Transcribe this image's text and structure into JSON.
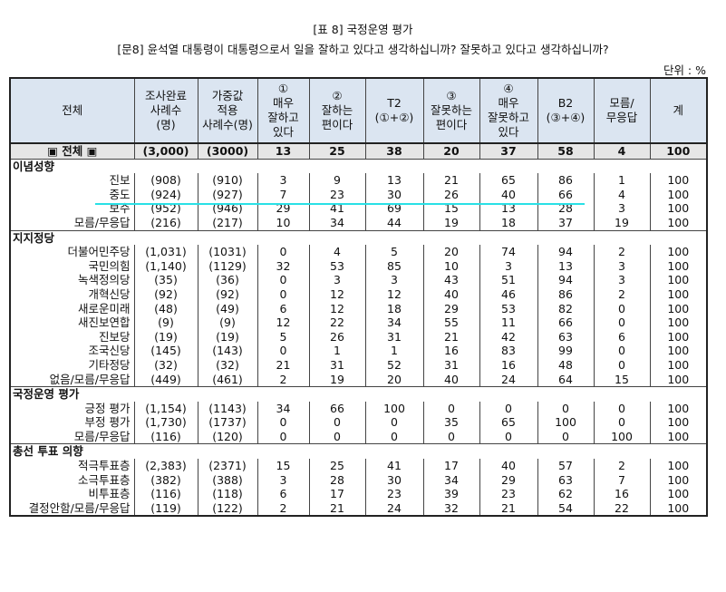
{
  "header": {
    "title": "[표 8] 국정운영 평가",
    "question": "[문8] 윤석열 대통령이 대통령으로서 일을 잘하고 있다고 생각하십니까? 잘못하고 있다고 생각하십니까?",
    "unit": "단위 : %"
  },
  "table": {
    "columns": [
      "전체",
      "조사완료\n사례수\n(명)",
      "가중값\n적용\n사례수(명)",
      "①\n매우\n잘하고\n있다",
      "②\n잘하는\n편이다",
      "T2\n(①+②)",
      "③\n잘못하는\n편이다",
      "④\n매우\n잘못하고\n있다",
      "B2\n(③+④)",
      "모름/\n무응답",
      "계"
    ],
    "total": {
      "label": "▣ 전체 ▣",
      "values": [
        "(3,000)",
        "(3000)",
        "13",
        "25",
        "38",
        "20",
        "37",
        "58",
        "4",
        "100"
      ]
    },
    "groups": [
      {
        "title": "이념성향",
        "rows": [
          {
            "label": "진보",
            "values": [
              "(908)",
              "(910)",
              "3",
              "9",
              "13",
              "21",
              "65",
              "86",
              "1",
              "100"
            ]
          },
          {
            "label": "중도",
            "values": [
              "(924)",
              "(927)",
              "7",
              "23",
              "30",
              "26",
              "40",
              "66",
              "4",
              "100"
            ]
          },
          {
            "label": "보수",
            "values": [
              "(952)",
              "(946)",
              "29",
              "41",
              "69",
              "15",
              "13",
              "28",
              "3",
              "100"
            ]
          },
          {
            "label": "모름/무응답",
            "values": [
              "(216)",
              "(217)",
              "10",
              "34",
              "44",
              "19",
              "18",
              "37",
              "19",
              "100"
            ]
          }
        ]
      },
      {
        "title": "지지정당",
        "rows": [
          {
            "label": "더불어민주당",
            "values": [
              "(1,031)",
              "(1031)",
              "0",
              "4",
              "5",
              "20",
              "74",
              "94",
              "2",
              "100"
            ]
          },
          {
            "label": "국민의힘",
            "values": [
              "(1,140)",
              "(1129)",
              "32",
              "53",
              "85",
              "10",
              "3",
              "13",
              "3",
              "100"
            ]
          },
          {
            "label": "녹색정의당",
            "values": [
              "(35)",
              "(36)",
              "0",
              "3",
              "3",
              "43",
              "51",
              "94",
              "3",
              "100"
            ]
          },
          {
            "label": "개혁신당",
            "values": [
              "(92)",
              "(92)",
              "0",
              "12",
              "12",
              "40",
              "46",
              "86",
              "2",
              "100"
            ]
          },
          {
            "label": "새로운미래",
            "values": [
              "(48)",
              "(49)",
              "6",
              "12",
              "18",
              "29",
              "53",
              "82",
              "0",
              "100"
            ]
          },
          {
            "label": "새진보연합",
            "values": [
              "(9)",
              "(9)",
              "12",
              "22",
              "34",
              "55",
              "11",
              "66",
              "0",
              "100"
            ]
          },
          {
            "label": "진보당",
            "values": [
              "(19)",
              "(19)",
              "5",
              "26",
              "31",
              "21",
              "42",
              "63",
              "6",
              "100"
            ]
          },
          {
            "label": "조국신당",
            "values": [
              "(145)",
              "(143)",
              "0",
              "1",
              "1",
              "16",
              "83",
              "99",
              "0",
              "100"
            ]
          },
          {
            "label": "기타정당",
            "values": [
              "(32)",
              "(32)",
              "21",
              "31",
              "52",
              "31",
              "16",
              "48",
              "0",
              "100"
            ]
          },
          {
            "label": "없음/모름/무응답",
            "values": [
              "(449)",
              "(461)",
              "2",
              "19",
              "20",
              "40",
              "24",
              "64",
              "15",
              "100"
            ]
          }
        ]
      },
      {
        "title": "국정운영 평가",
        "rows": [
          {
            "label": "긍정 평가",
            "values": [
              "(1,154)",
              "(1143)",
              "34",
              "66",
              "100",
              "0",
              "0",
              "0",
              "0",
              "100"
            ]
          },
          {
            "label": "부정 평가",
            "values": [
              "(1,730)",
              "(1737)",
              "0",
              "0",
              "0",
              "35",
              "65",
              "100",
              "0",
              "100"
            ]
          },
          {
            "label": "모름/무응답",
            "values": [
              "(116)",
              "(120)",
              "0",
              "0",
              "0",
              "0",
              "0",
              "0",
              "100",
              "100"
            ]
          }
        ]
      },
      {
        "title": "총선 투표 의향",
        "rows": [
          {
            "label": "적극투표층",
            "values": [
              "(2,383)",
              "(2371)",
              "15",
              "25",
              "41",
              "17",
              "40",
              "57",
              "2",
              "100"
            ]
          },
          {
            "label": "소극투표층",
            "values": [
              "(382)",
              "(388)",
              "3",
              "28",
              "30",
              "34",
              "29",
              "63",
              "7",
              "100"
            ]
          },
          {
            "label": "비투표층",
            "values": [
              "(116)",
              "(118)",
              "6",
              "17",
              "23",
              "39",
              "23",
              "62",
              "16",
              "100"
            ]
          },
          {
            "label": "결정안함/모름/무응답",
            "values": [
              "(119)",
              "(122)",
              "2",
              "21",
              "24",
              "32",
              "21",
              "54",
              "22",
              "100"
            ]
          }
        ]
      }
    ]
  }
}
